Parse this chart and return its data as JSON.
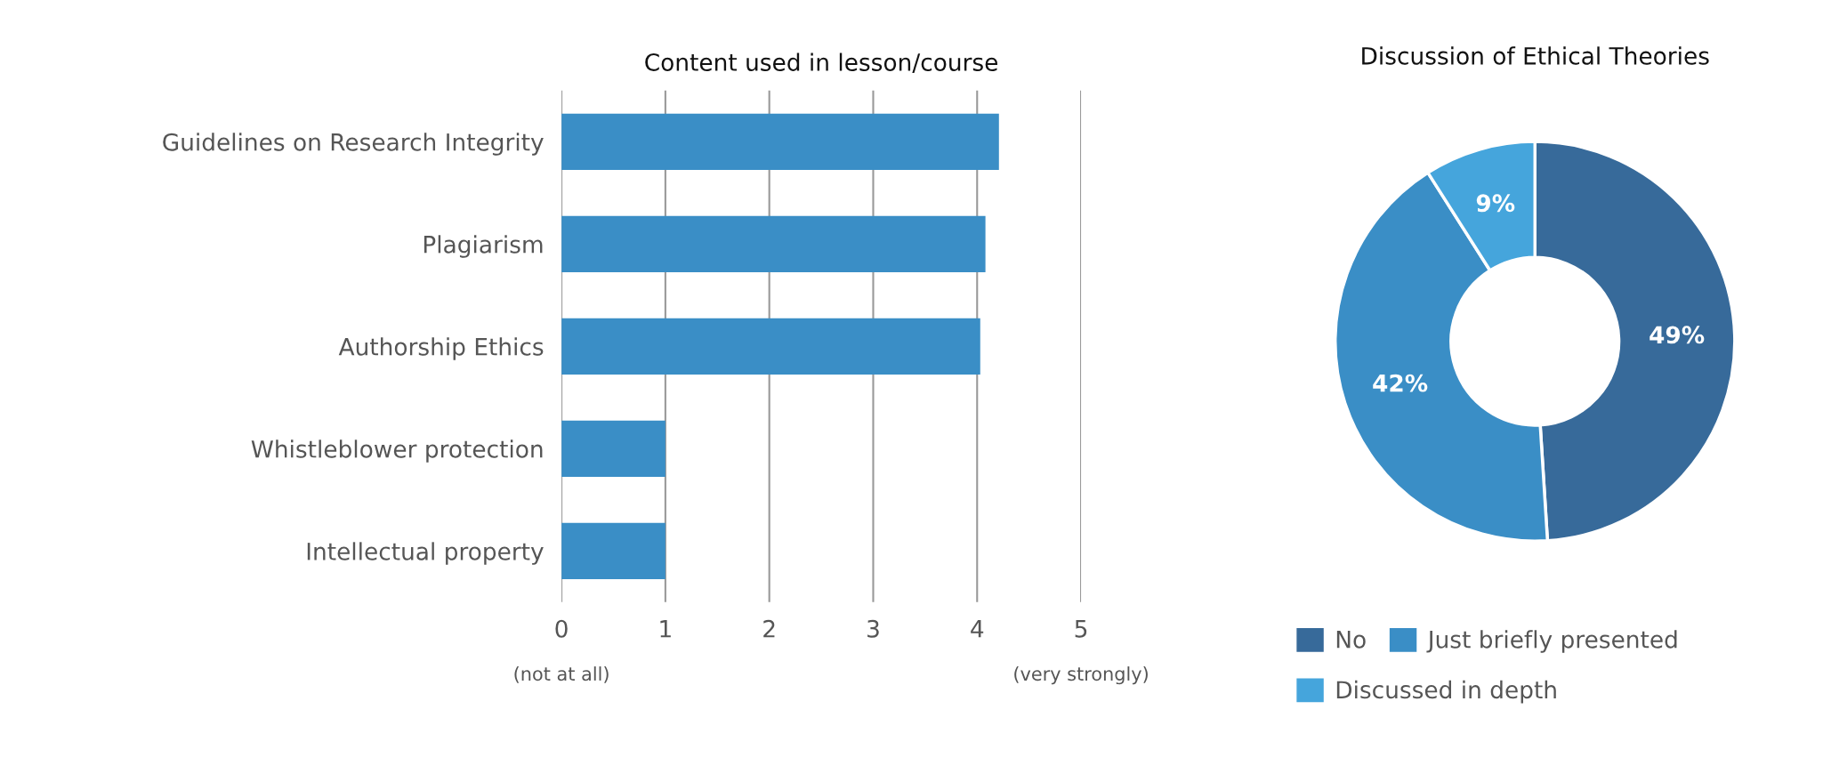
{
  "chart_data": [
    {
      "type": "bar",
      "orientation": "horizontal",
      "title": "Content used in lesson/course",
      "categories": [
        "Guidelines on Research Integrity",
        "Plagiarism",
        "Authorship Ethics",
        "Whistleblower protection",
        "Intellectual property"
      ],
      "values": [
        4.21,
        4.08,
        4.03,
        1.0,
        1.0
      ],
      "color": "#3a8ec6",
      "xlim": [
        0,
        5
      ],
      "xticks": [
        0,
        1,
        2,
        3,
        4,
        5
      ],
      "grid": "x",
      "annotations": [
        "(not at all)",
        "(very strongly)"
      ]
    },
    {
      "type": "donut",
      "title": "Discussion of Ethical Theories",
      "categories": [
        "No",
        "Just briefly presented",
        "Discussed in depth"
      ],
      "values": [
        49,
        42,
        9
      ],
      "colors": [
        "#376a9a",
        "#3a8ec6",
        "#45a5dc"
      ],
      "value_labels": [
        "49%",
        "42%",
        "9%"
      ],
      "legend": "bottom"
    }
  ]
}
